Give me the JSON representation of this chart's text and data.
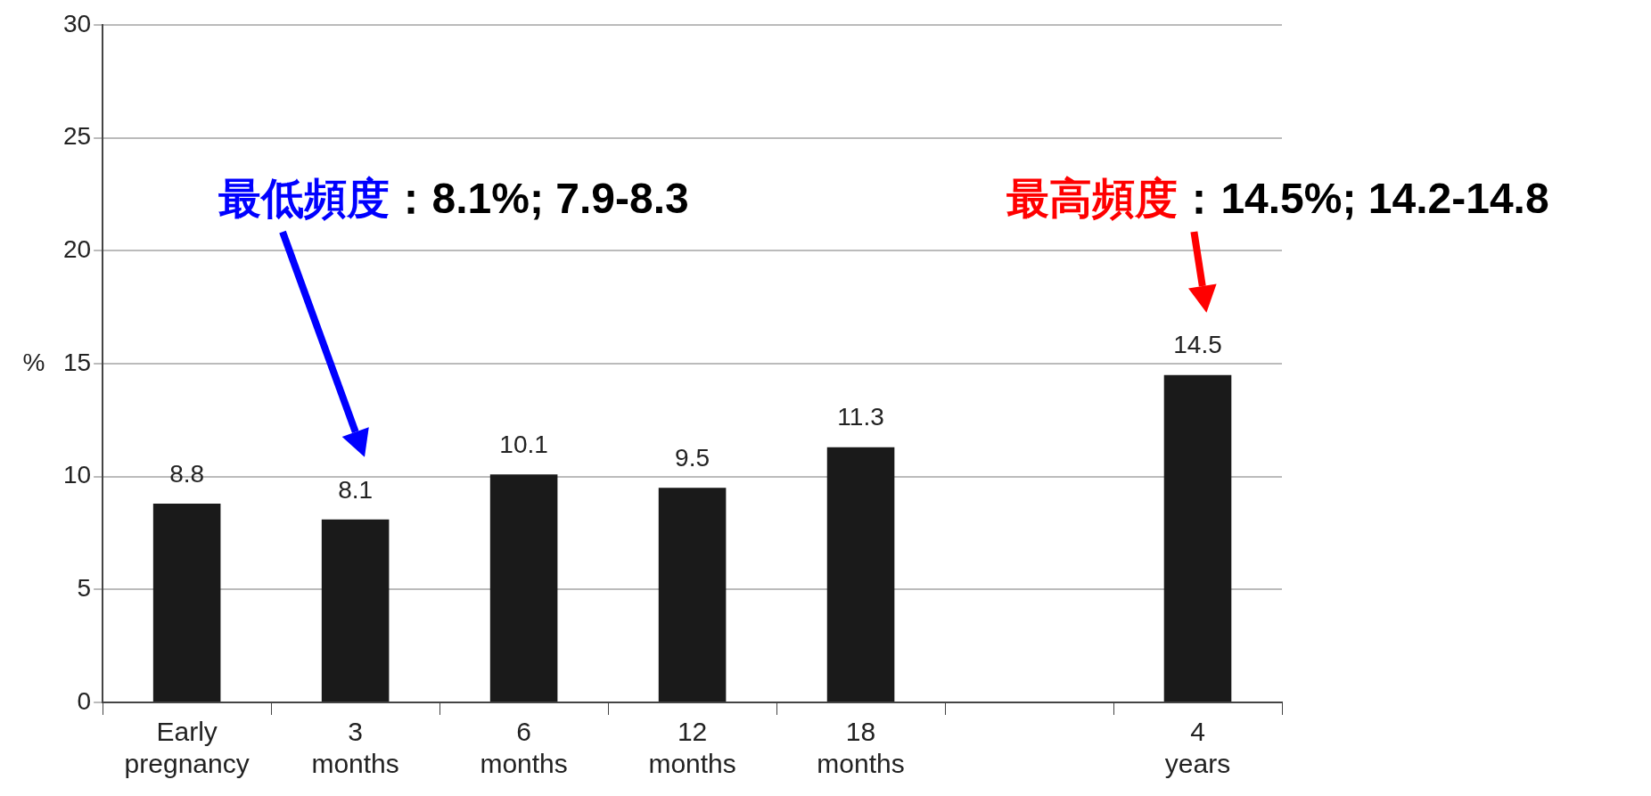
{
  "chart_data": {
    "type": "bar",
    "ylabel": "%",
    "categories": [
      "Early pregnancy",
      "3 months",
      "6 months",
      "12 months",
      "18 months",
      null,
      "4 years"
    ],
    "values": [
      8.8,
      8.1,
      10.1,
      9.5,
      11.3,
      null,
      14.5
    ],
    "color": "#1a1a1a",
    "ylim": [
      0,
      30
    ],
    "yticks": [
      0,
      5,
      10,
      15,
      20,
      25,
      30
    ],
    "grid": "y",
    "data_labels": true,
    "annotations": [
      "最低頻度：8.1%; 7.9-8.3",
      "最高頻度：14.5%; 14.2-14.8"
    ]
  }
}
